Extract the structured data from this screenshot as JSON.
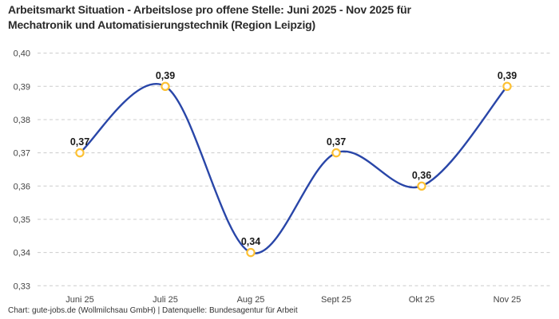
{
  "title": {
    "line1": "Arbeitsmarkt Situation - Arbeitslose pro offene Stelle: Juni 2025 - Nov 2025 für",
    "line2": "Mechatronik und Automatisierungstechnik (Region Leipzig)"
  },
  "footer": "Chart: gute-jobs.de (Wollmilchsau GmbH) | Datenquelle: Bundesagentur für Arbeit",
  "chart_data": {
    "type": "line",
    "title": "Arbeitsmarkt Situation - Arbeitslose pro offene Stelle: Juni 2025 - Nov 2025 für Mechatronik und Automatisierungstechnik (Region Leipzig)",
    "categories": [
      "Juni 25",
      "Juli 25",
      "Aug 25",
      "Sept 25",
      "Okt 25",
      "Nov 25"
    ],
    "values": [
      0.37,
      0.39,
      0.34,
      0.37,
      0.36,
      0.39
    ],
    "point_labels": [
      "0,37",
      "0,39",
      "0,34",
      "0,37",
      "0,36",
      "0,39"
    ],
    "xlabel": "",
    "ylabel": "",
    "ylim": [
      0.33,
      0.4
    ],
    "y_ticks": [
      {
        "v": 0.4,
        "label": "0,40"
      },
      {
        "v": 0.39,
        "label": "0,39"
      },
      {
        "v": 0.38,
        "label": "0,38"
      },
      {
        "v": 0.37,
        "label": "0,37"
      },
      {
        "v": 0.36,
        "label": "0,36"
      },
      {
        "v": 0.35,
        "label": "0,35"
      },
      {
        "v": 0.34,
        "label": "0,34"
      },
      {
        "v": 0.33,
        "label": "0,33"
      }
    ],
    "grid": "horizontal-dashed",
    "legend": "none",
    "colors": {
      "line": "#2946a8",
      "marker_stroke": "#fdc133",
      "marker_fill": "#ffffff",
      "gridline": "#cccccc",
      "tick_label": "#444444",
      "point_label": "#1a1a1a"
    }
  }
}
